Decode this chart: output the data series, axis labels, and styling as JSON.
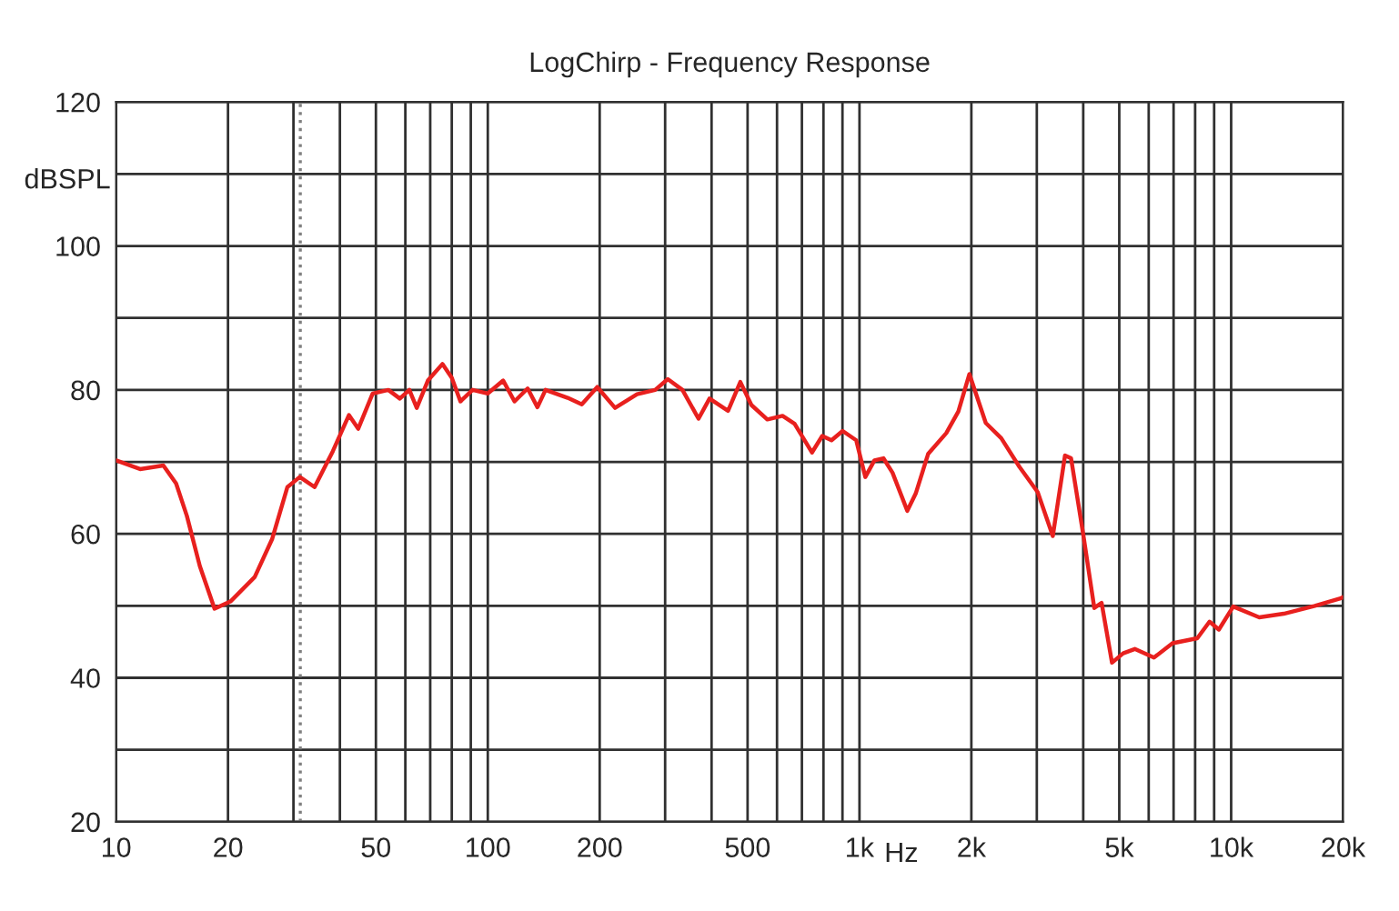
{
  "chart_data": {
    "type": "line",
    "title": "LogChirp - Frequency Response",
    "xlabel": "Hz",
    "ylabel": "dBSPL",
    "log": "x",
    "grid": true,
    "legend": false,
    "marker": "none",
    "line_style": "solid",
    "xlim": [
      10,
      20000
    ],
    "ylim": [
      20,
      120
    ],
    "xticks": [
      10,
      20,
      {
        "value": 30,
        "label": null
      },
      {
        "value": 40,
        "label": null
      },
      50,
      {
        "value": 60,
        "label": null
      },
      {
        "value": 70,
        "label": null
      },
      {
        "value": 80,
        "label": null
      },
      {
        "value": 90,
        "label": null
      },
      100,
      200,
      {
        "value": 300,
        "label": null
      },
      {
        "value": 400,
        "label": null
      },
      500,
      {
        "value": 600,
        "label": null
      },
      {
        "value": 700,
        "label": null
      },
      {
        "value": 800,
        "label": null
      },
      {
        "value": 900,
        "label": null
      },
      {
        "value": 1000,
        "label": "1k"
      },
      {
        "value": 2000,
        "label": "2k"
      },
      {
        "value": 3000,
        "label": null
      },
      {
        "value": 4000,
        "label": null
      },
      {
        "value": 5000,
        "label": "5k"
      },
      {
        "value": 6000,
        "label": null
      },
      {
        "value": 7000,
        "label": null
      },
      {
        "value": 8000,
        "label": null
      },
      {
        "value": 9000,
        "label": null
      },
      {
        "value": 10000,
        "label": "10k"
      },
      {
        "value": 20000,
        "label": "20k"
      }
    ],
    "yticks": [
      20,
      {
        "value": 30,
        "label": null
      },
      40,
      {
        "value": 50,
        "label": null
      },
      60,
      {
        "value": 70,
        "label": null
      },
      80,
      {
        "value": 90,
        "label": null
      },
      100,
      {
        "value": 110,
        "label": null
      },
      120
    ],
    "ref_lines": [
      {
        "axis": "x",
        "value": 31.3,
        "label": null,
        "color": "#808080",
        "line_style": "dotted"
      }
    ],
    "series": [
      {
        "color": "#e8201e",
        "x": [
          10,
          11.6,
          13.4,
          14.5,
          15.5,
          16.8,
          18.4,
          20.3,
          23.6,
          26.3,
          28.9,
          31.2,
          34.2,
          38.3,
          42.3,
          44.8,
          49,
          54,
          58,
          61.5,
          64.4,
          69,
          75.5,
          80,
          84.4,
          91,
          100,
          110,
          118,
          128,
          136,
          143,
          164,
          179,
          197,
          220,
          252,
          282,
          305,
          334,
          369,
          395,
          443,
          478,
          512,
          565,
          621,
          669,
          745,
          794,
          841,
          901,
          980,
          1037,
          1097,
          1160,
          1227,
          1345,
          1417,
          1530,
          1712,
          1845,
          1976,
          2187,
          2406,
          2694,
          3016,
          3312,
          3573,
          3709,
          4000,
          4283,
          4482,
          4780,
          5120,
          5505,
          6198,
          6953,
          8108,
          8745,
          9267,
          10130,
          11900,
          13850,
          16800,
          19600,
          20000
        ],
        "values": [
          70.2,
          69,
          69.5,
          67,
          62.5,
          55.5,
          49.6,
          50.6,
          54,
          59.3,
          66.5,
          67.9,
          66.5,
          71.5,
          76.5,
          74.6,
          79.5,
          80,
          78.8,
          80,
          77.5,
          81.3,
          83.6,
          81.7,
          78.4,
          80,
          79.5,
          81.3,
          78.4,
          80.2,
          77.6,
          80,
          78.9,
          78,
          80.4,
          77.5,
          79.4,
          80,
          81.5,
          80,
          76,
          78.8,
          77.1,
          81.1,
          77.9,
          75.9,
          76.4,
          75.3,
          71.3,
          73.6,
          73,
          74.3,
          73,
          67.9,
          70.2,
          70.5,
          68.5,
          63.2,
          65.6,
          71.1,
          74,
          77,
          82.2,
          75.4,
          73.3,
          69.3,
          65.8,
          59.7,
          70.9,
          70.5,
          59.9,
          49.7,
          50.4,
          42.1,
          43.4,
          44,
          42.8,
          44.8,
          45.5,
          47.8,
          46.7,
          49.9,
          48.4,
          48.9,
          50,
          51,
          51.2
        ]
      }
    ]
  }
}
